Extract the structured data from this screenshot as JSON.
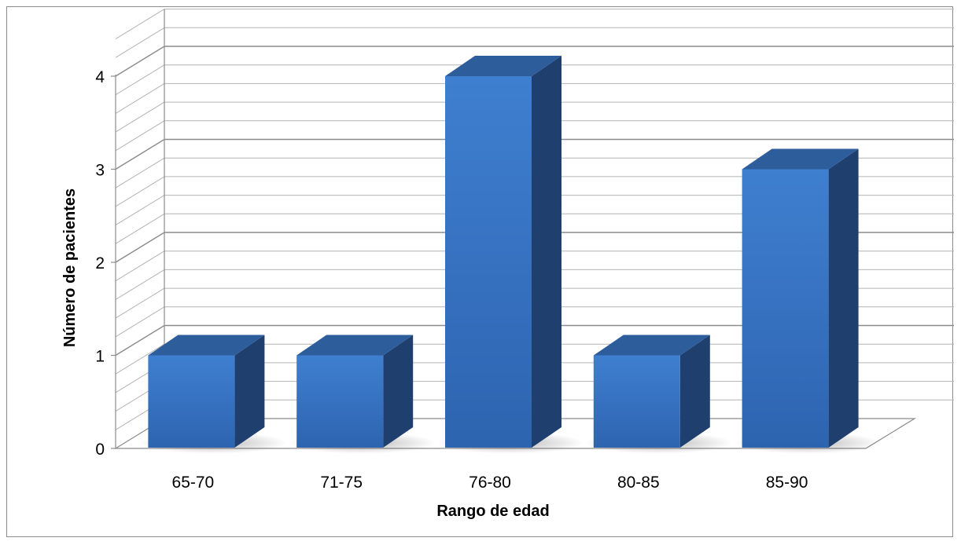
{
  "chart_data": {
    "type": "bar",
    "style": "3d-column",
    "title": "",
    "xlabel": "Rango de edad",
    "ylabel": "Número de pacientes",
    "categories": [
      "65-70",
      "71-75",
      "76-80",
      "80-85",
      "85-90"
    ],
    "values": [
      1,
      1,
      4,
      1,
      3
    ],
    "ylim": [
      0,
      4
    ],
    "yticks": [
      "0",
      "1",
      "2",
      "3",
      "4"
    ],
    "grid": true,
    "legend": "none"
  },
  "colors": {
    "bar_front": "#3f7fd0",
    "bar_front_dark": "#2d64b0",
    "bar_side": "#1f3f6e",
    "bar_top": "#2e5d9c",
    "grid_major": "#8c8c8c",
    "grid_minor": "#b4b4b4"
  }
}
